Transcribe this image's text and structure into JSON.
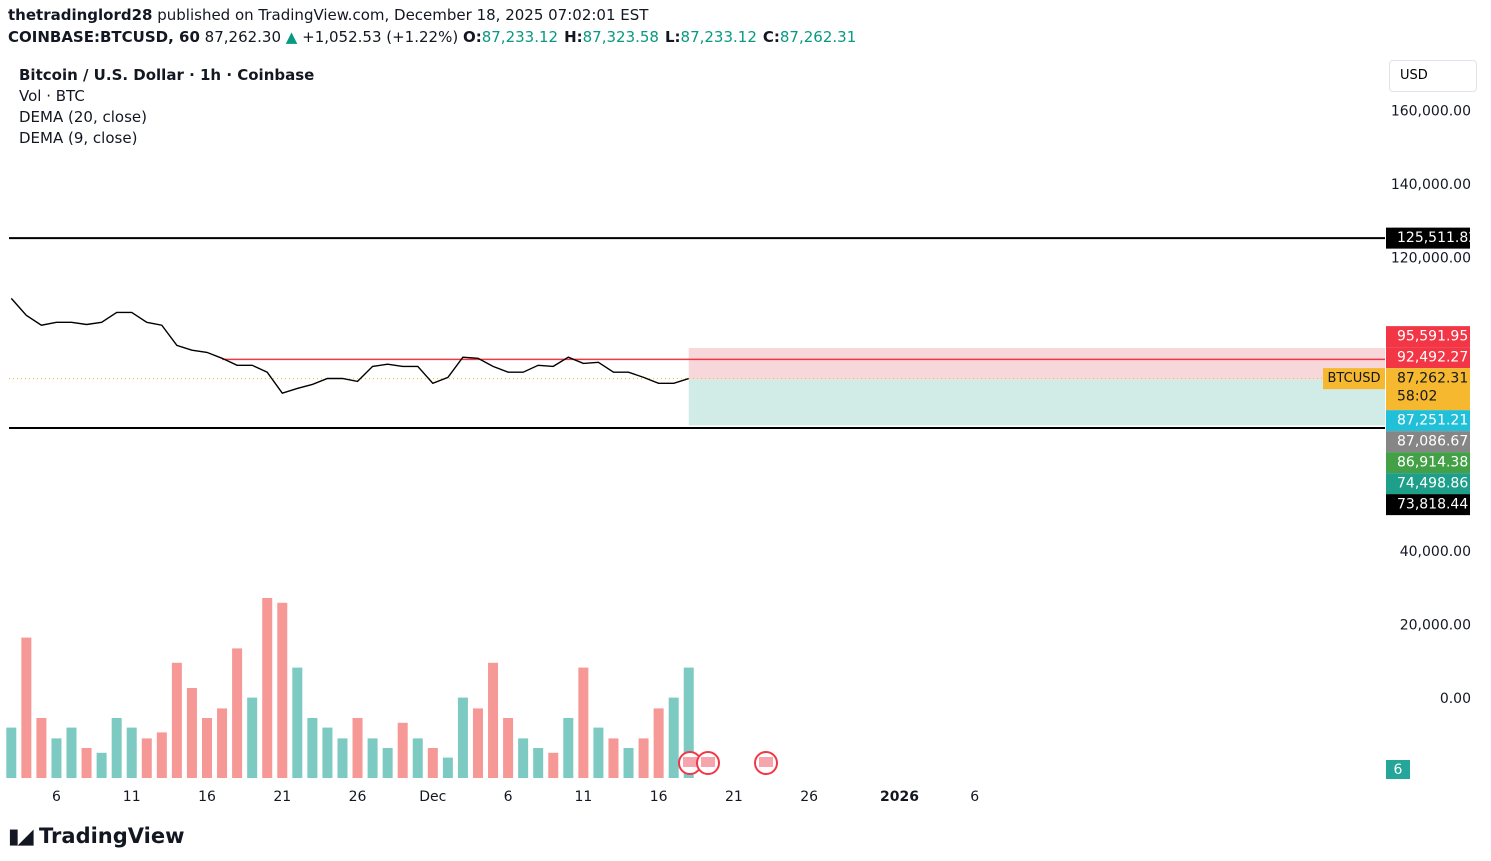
{
  "header": {
    "author": "thetradinglord28",
    "published": "published on TradingView.com, December 18, 2025 07:02:01 EST",
    "symbol": "COINBASE:BTCUSD, 60",
    "last": "87,262.30",
    "arrow": "▲",
    "change": "+1,052.53 (+1.22%)",
    "ohlc": [
      {
        "key": "O:",
        "value": "87,233.12"
      },
      {
        "key": "H:",
        "value": "87,323.58"
      },
      {
        "key": "L:",
        "value": "87,233.12"
      },
      {
        "key": "C:",
        "value": "87,262.31"
      }
    ]
  },
  "currency": "USD",
  "logo": "TradingView",
  "chart_data": {
    "type": "line",
    "title": "Bitcoin / U.S. Dollar · 1h · Coinbase",
    "indicators": [
      "Vol · BTC",
      "DEMA (20, close)",
      "DEMA (9, close)"
    ],
    "x": [
      "2025-11-03",
      "2025-11-04",
      "2025-11-05",
      "2025-11-06",
      "2025-11-07",
      "2025-11-08",
      "2025-11-09",
      "2025-11-10",
      "2025-11-11",
      "2025-11-12",
      "2025-11-13",
      "2025-11-14",
      "2025-11-15",
      "2025-11-16",
      "2025-11-17",
      "2025-11-18",
      "2025-11-19",
      "2025-11-20",
      "2025-11-21",
      "2025-11-22",
      "2025-11-23",
      "2025-11-24",
      "2025-11-25",
      "2025-11-26",
      "2025-11-27",
      "2025-11-28",
      "2025-11-29",
      "2025-11-30",
      "2025-12-01",
      "2025-12-02",
      "2025-12-03",
      "2025-12-04",
      "2025-12-05",
      "2025-12-06",
      "2025-12-07",
      "2025-12-08",
      "2025-12-09",
      "2025-12-10",
      "2025-12-11",
      "2025-12-12",
      "2025-12-13",
      "2025-12-14",
      "2025-12-15",
      "2025-12-16",
      "2025-12-17",
      "2025-12-18"
    ],
    "series": [
      {
        "name": "BTCUSD",
        "color": "#000000",
        "values": [
          109100,
          104500,
          101800,
          102600,
          102600,
          102000,
          102600,
          105300,
          105300,
          102600,
          101800,
          96300,
          95000,
          94400,
          92800,
          90900,
          90900,
          89000,
          83300,
          84600,
          85700,
          87300,
          87300,
          86500,
          90600,
          91200,
          90600,
          90600,
          86000,
          87600,
          93100,
          92800,
          90600,
          89000,
          89000,
          90900,
          90600,
          93100,
          91400,
          91700,
          89000,
          89000,
          87600,
          86000,
          86000,
          87262.3
        ]
      }
    ],
    "volume": {
      "values": [
        420,
        1170,
        500,
        330,
        420,
        250,
        210,
        500,
        420,
        330,
        380,
        960,
        750,
        500,
        580,
        1080,
        670,
        1500,
        1460,
        920,
        500,
        420,
        330,
        500,
        330,
        250,
        460,
        330,
        250,
        170,
        670,
        580,
        960,
        500,
        330,
        250,
        210,
        500,
        920,
        420,
        330,
        250,
        330,
        580,
        670,
        920
      ],
      "vlim": [
        0,
        1500
      ],
      "up_color": "#26a69a",
      "down_color": "#ef5350",
      "last_label": "6"
    },
    "xlim": [
      "2025-11-02T06:00:00Z",
      "2026-02-02T06:00:00Z"
    ],
    "xticks": [
      {
        "value": "2025-11-06",
        "label": "6"
      },
      {
        "value": "2025-11-11",
        "label": "11"
      },
      {
        "value": "2025-11-16",
        "label": "16"
      },
      {
        "value": "2025-11-21",
        "label": "21"
      },
      {
        "value": "2025-11-26",
        "label": "26"
      },
      {
        "value": "2025-12-01",
        "label": "Dec"
      },
      {
        "value": "2025-12-06",
        "label": "6"
      },
      {
        "value": "2025-12-11",
        "label": "11"
      },
      {
        "value": "2025-12-16",
        "label": "16"
      },
      {
        "value": "2025-12-21",
        "label": "21"
      },
      {
        "value": "2025-12-26",
        "label": "26"
      },
      {
        "value": "2026-01-01",
        "label": "2026"
      },
      {
        "value": "2026-01-06",
        "label": "6"
      }
    ],
    "ylim": [
      -22000,
      174000
    ],
    "yticks": [
      {
        "value": 160000,
        "label": "160,000.00"
      },
      {
        "value": 140000,
        "label": "140,000.00"
      },
      {
        "value": 120000,
        "label": "120,000.00"
      },
      {
        "value": 40000,
        "label": "40,000.00"
      },
      {
        "value": 20000,
        "label": "20,000.00"
      },
      {
        "value": 0,
        "label": "0.00"
      }
    ],
    "price_labels": [
      {
        "value": 125511.82,
        "label": "125,511.82",
        "color": "#000000",
        "line": "full"
      },
      {
        "value": 95591.95,
        "label": "95,591.95",
        "color": "#f23645"
      },
      {
        "value": 92492.27,
        "label": "92,492.27",
        "color": "#f23645",
        "line": "2025-11-17"
      },
      {
        "value": 87262.31,
        "label": "87,262.31",
        "color": "#f5b82e",
        "countdown": "58:02",
        "line": "dotted"
      },
      {
        "value": 87251.21,
        "label": "87,251.21",
        "color": "#22c0d8"
      },
      {
        "value": 87086.67,
        "label": "87,086.67",
        "color": "#868686"
      },
      {
        "value": 86914.38,
        "label": "86,914.38",
        "color": "#43a047"
      },
      {
        "value": 74498.86,
        "label": "74,498.86",
        "color": "#1e9f8a"
      },
      {
        "value": 73818.44,
        "label": "73,818.44",
        "color": "#000000",
        "line": "full"
      }
    ],
    "position": {
      "start": "2025-12-18",
      "stop": 95591.95,
      "entry": 87086.67,
      "target": 74498.86,
      "stop_color": "#f8d7da",
      "target_color": "#d1ebe6"
    }
  }
}
